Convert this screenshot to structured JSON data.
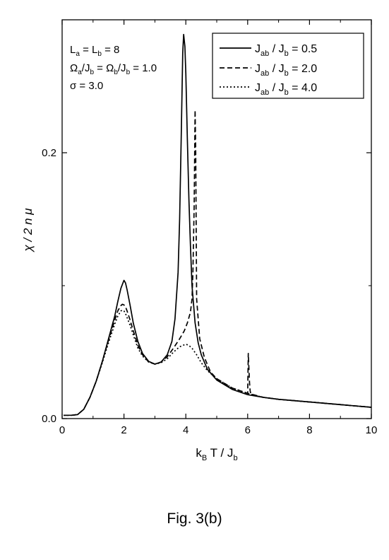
{
  "figure": {
    "caption": "Fig. 3(b)"
  },
  "chart_data": {
    "type": "line",
    "xlabel": {
      "base": "k",
      "sub1": "B",
      "mid": " T / J",
      "sub2": "b"
    },
    "ylabel": "χ / 2 n μ",
    "xlim": [
      0,
      10
    ],
    "ylim": [
      0.0,
      0.3
    ],
    "x_ticks": [
      0,
      2,
      4,
      6,
      8,
      10
    ],
    "x_tick_labels": [
      "0",
      "2",
      "4",
      "6",
      "8",
      "10"
    ],
    "y_ticks": [
      0.0,
      0.2
    ],
    "y_tick_labels": [
      "0.0",
      "0.2"
    ],
    "grid": false,
    "legend_position": "top-right",
    "params": [
      {
        "text": "L",
        "sub": "a",
        "rest": " = L",
        "sub2": "b",
        "rest2": " = 8"
      },
      {
        "text": "Ω",
        "sub": "a",
        "rest": "/J",
        "sub2": "b",
        "rest2": " = Ω",
        "sub3": "b",
        "rest3": "/J",
        "sub4": "b",
        "rest4": " = 1.0"
      },
      {
        "text": "σ = 3.0"
      }
    ],
    "series": [
      {
        "name": {
          "base": "J",
          "sub1": "ab",
          "mid": " / J",
          "sub2": "b",
          "tail": " = 0.5"
        },
        "style": "solid",
        "x": [
          0.05,
          0.3,
          0.5,
          0.7,
          0.9,
          1.1,
          1.3,
          1.5,
          1.7,
          1.8,
          1.9,
          1.95,
          2.0,
          2.05,
          2.1,
          2.2,
          2.3,
          2.45,
          2.6,
          2.8,
          3.0,
          3.2,
          3.4,
          3.55,
          3.65,
          3.75,
          3.8,
          3.85,
          3.9,
          3.93,
          3.97,
          4.0,
          4.05,
          4.1,
          4.15,
          4.2,
          4.3,
          4.4,
          4.5,
          4.7,
          5.0,
          5.5,
          6.0,
          6.5,
          7.0,
          8.0,
          9.0,
          10.0
        ],
        "y": [
          0.0025,
          0.0025,
          0.003,
          0.007,
          0.016,
          0.028,
          0.043,
          0.06,
          0.077,
          0.088,
          0.098,
          0.101,
          0.104,
          0.102,
          0.097,
          0.085,
          0.072,
          0.058,
          0.049,
          0.043,
          0.041,
          0.0425,
          0.048,
          0.058,
          0.075,
          0.11,
          0.15,
          0.21,
          0.275,
          0.289,
          0.28,
          0.26,
          0.21,
          0.165,
          0.13,
          0.1,
          0.072,
          0.057,
          0.048,
          0.037,
          0.029,
          0.022,
          0.018,
          0.016,
          0.0145,
          0.0125,
          0.0105,
          0.0085
        ]
      },
      {
        "name": {
          "base": "J",
          "sub1": "ab",
          "mid": " / J",
          "sub2": "b",
          "tail": " = 2.0"
        },
        "style": "dashed",
        "x": [
          0.05,
          0.3,
          0.5,
          0.7,
          0.9,
          1.1,
          1.3,
          1.5,
          1.7,
          1.8,
          1.9,
          1.95,
          2.0,
          2.05,
          2.1,
          2.2,
          2.3,
          2.45,
          2.6,
          2.8,
          3.0,
          3.2,
          3.4,
          3.6,
          3.8,
          3.95,
          4.05,
          4.15,
          4.2,
          4.23,
          4.27,
          4.3,
          4.32,
          4.35,
          4.45,
          4.6,
          4.8,
          5.0,
          5.5,
          6.0,
          6.02,
          6.04,
          6.06,
          6.08,
          6.1,
          6.5,
          7.0,
          8.0,
          9.0,
          10.0
        ],
        "y": [
          0.0025,
          0.0025,
          0.003,
          0.007,
          0.016,
          0.028,
          0.043,
          0.059,
          0.074,
          0.081,
          0.085,
          0.086,
          0.0855,
          0.084,
          0.081,
          0.074,
          0.066,
          0.055,
          0.048,
          0.0425,
          0.041,
          0.0425,
          0.0465,
          0.053,
          0.06,
          0.066,
          0.072,
          0.08,
          0.09,
          0.11,
          0.16,
          0.232,
          0.2,
          0.09,
          0.06,
          0.046,
          0.035,
          0.03,
          0.023,
          0.019,
          0.049,
          0.038,
          0.027,
          0.021,
          0.0185,
          0.016,
          0.0145,
          0.0125,
          0.0105,
          0.0085
        ]
      },
      {
        "name": {
          "base": "J",
          "sub1": "ab",
          "mid": " / J",
          "sub2": "b",
          "tail": " = 4.0"
        },
        "style": "dotted",
        "x": [
          0.05,
          0.3,
          0.5,
          0.7,
          0.9,
          1.1,
          1.3,
          1.5,
          1.7,
          1.8,
          1.9,
          1.95,
          2.0,
          2.05,
          2.1,
          2.2,
          2.3,
          2.45,
          2.6,
          2.8,
          3.0,
          3.2,
          3.4,
          3.6,
          3.8,
          4.0,
          4.1,
          4.2,
          4.35,
          4.5,
          4.7,
          5.0,
          5.5,
          6.0,
          6.5,
          7.0,
          8.0,
          9.0,
          10.0
        ],
        "y": [
          0.0025,
          0.0025,
          0.003,
          0.007,
          0.016,
          0.028,
          0.042,
          0.057,
          0.071,
          0.077,
          0.081,
          0.0815,
          0.081,
          0.079,
          0.076,
          0.07,
          0.063,
          0.053,
          0.047,
          0.0425,
          0.041,
          0.042,
          0.045,
          0.05,
          0.054,
          0.056,
          0.055,
          0.053,
          0.048,
          0.042,
          0.036,
          0.03,
          0.023,
          0.019,
          0.016,
          0.0145,
          0.0125,
          0.0105,
          0.0085
        ]
      }
    ]
  }
}
